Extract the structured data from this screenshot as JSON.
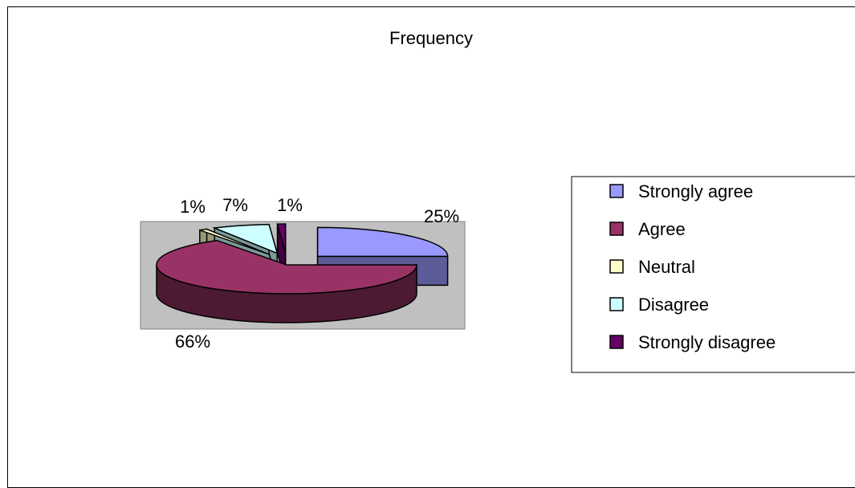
{
  "chart_data": {
    "type": "pie",
    "title": "Frequency",
    "categories": [
      "Strongly agree",
      "Agree",
      "Neutral",
      "Disagree",
      "Strongly disagree"
    ],
    "values": [
      25,
      66,
      1,
      7,
      1
    ],
    "value_labels": [
      "25%",
      "66%",
      "1%",
      "7%",
      "1%"
    ],
    "colors": [
      "#9999FF",
      "#993366",
      "#FFFFCC",
      "#CCFFFF",
      "#660066"
    ],
    "legend_position": "right",
    "plot_area_color": "#C0C0C0",
    "three_d": true
  }
}
